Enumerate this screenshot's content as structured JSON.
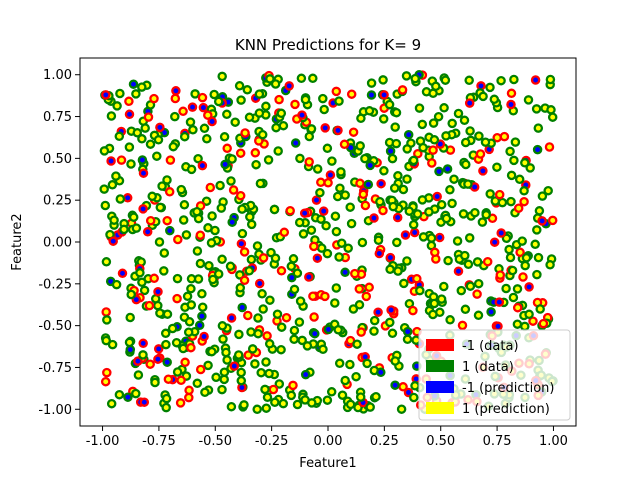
{
  "chart_data": {
    "type": "scatter",
    "title": "KNN Predictions for K= 9",
    "xlabel": "Feature1",
    "ylabel": "Feature2",
    "xlim": [
      -1.1,
      1.1
    ],
    "ylim": [
      -1.1,
      1.1
    ],
    "xticks": [
      "-1.00",
      "-0.75",
      "-0.50",
      "-0.25",
      "0.00",
      "0.25",
      "0.50",
      "0.75",
      "1.00"
    ],
    "yticks": [
      "1.00",
      "0.75",
      "0.50",
      "0.25",
      "0.00",
      "-0.25",
      "-0.50",
      "-0.75",
      "-1.00"
    ],
    "grid": false,
    "legend_position": "lower-right",
    "legend": [
      {
        "label": "-1 (data)",
        "color": "#ff0000"
      },
      {
        "label": "1 (data)",
        "color": "#008000"
      },
      {
        "label": "-1 (prediction)",
        "color": "#0000ff"
      },
      {
        "label": "1 (prediction)",
        "color": "#ffff00"
      }
    ],
    "point_count_estimate": 1000,
    "note_points": "Dense uniform scatter over [-1,1]x[-1,1]; edge color = data label (red -1, green 1), face color = prediction (blue -1, yellow 1). Most points green/yellow.",
    "series": [
      {
        "label": "-1 (data)",
        "color": "#ff0000",
        "role": "edge"
      },
      {
        "label": "1 (data)",
        "color": "#008000",
        "role": "edge"
      },
      {
        "label": "-1 (prediction)",
        "color": "#0000ff",
        "role": "face"
      },
      {
        "label": "1 (prediction)",
        "color": "#ffff00",
        "role": "face"
      }
    ]
  }
}
